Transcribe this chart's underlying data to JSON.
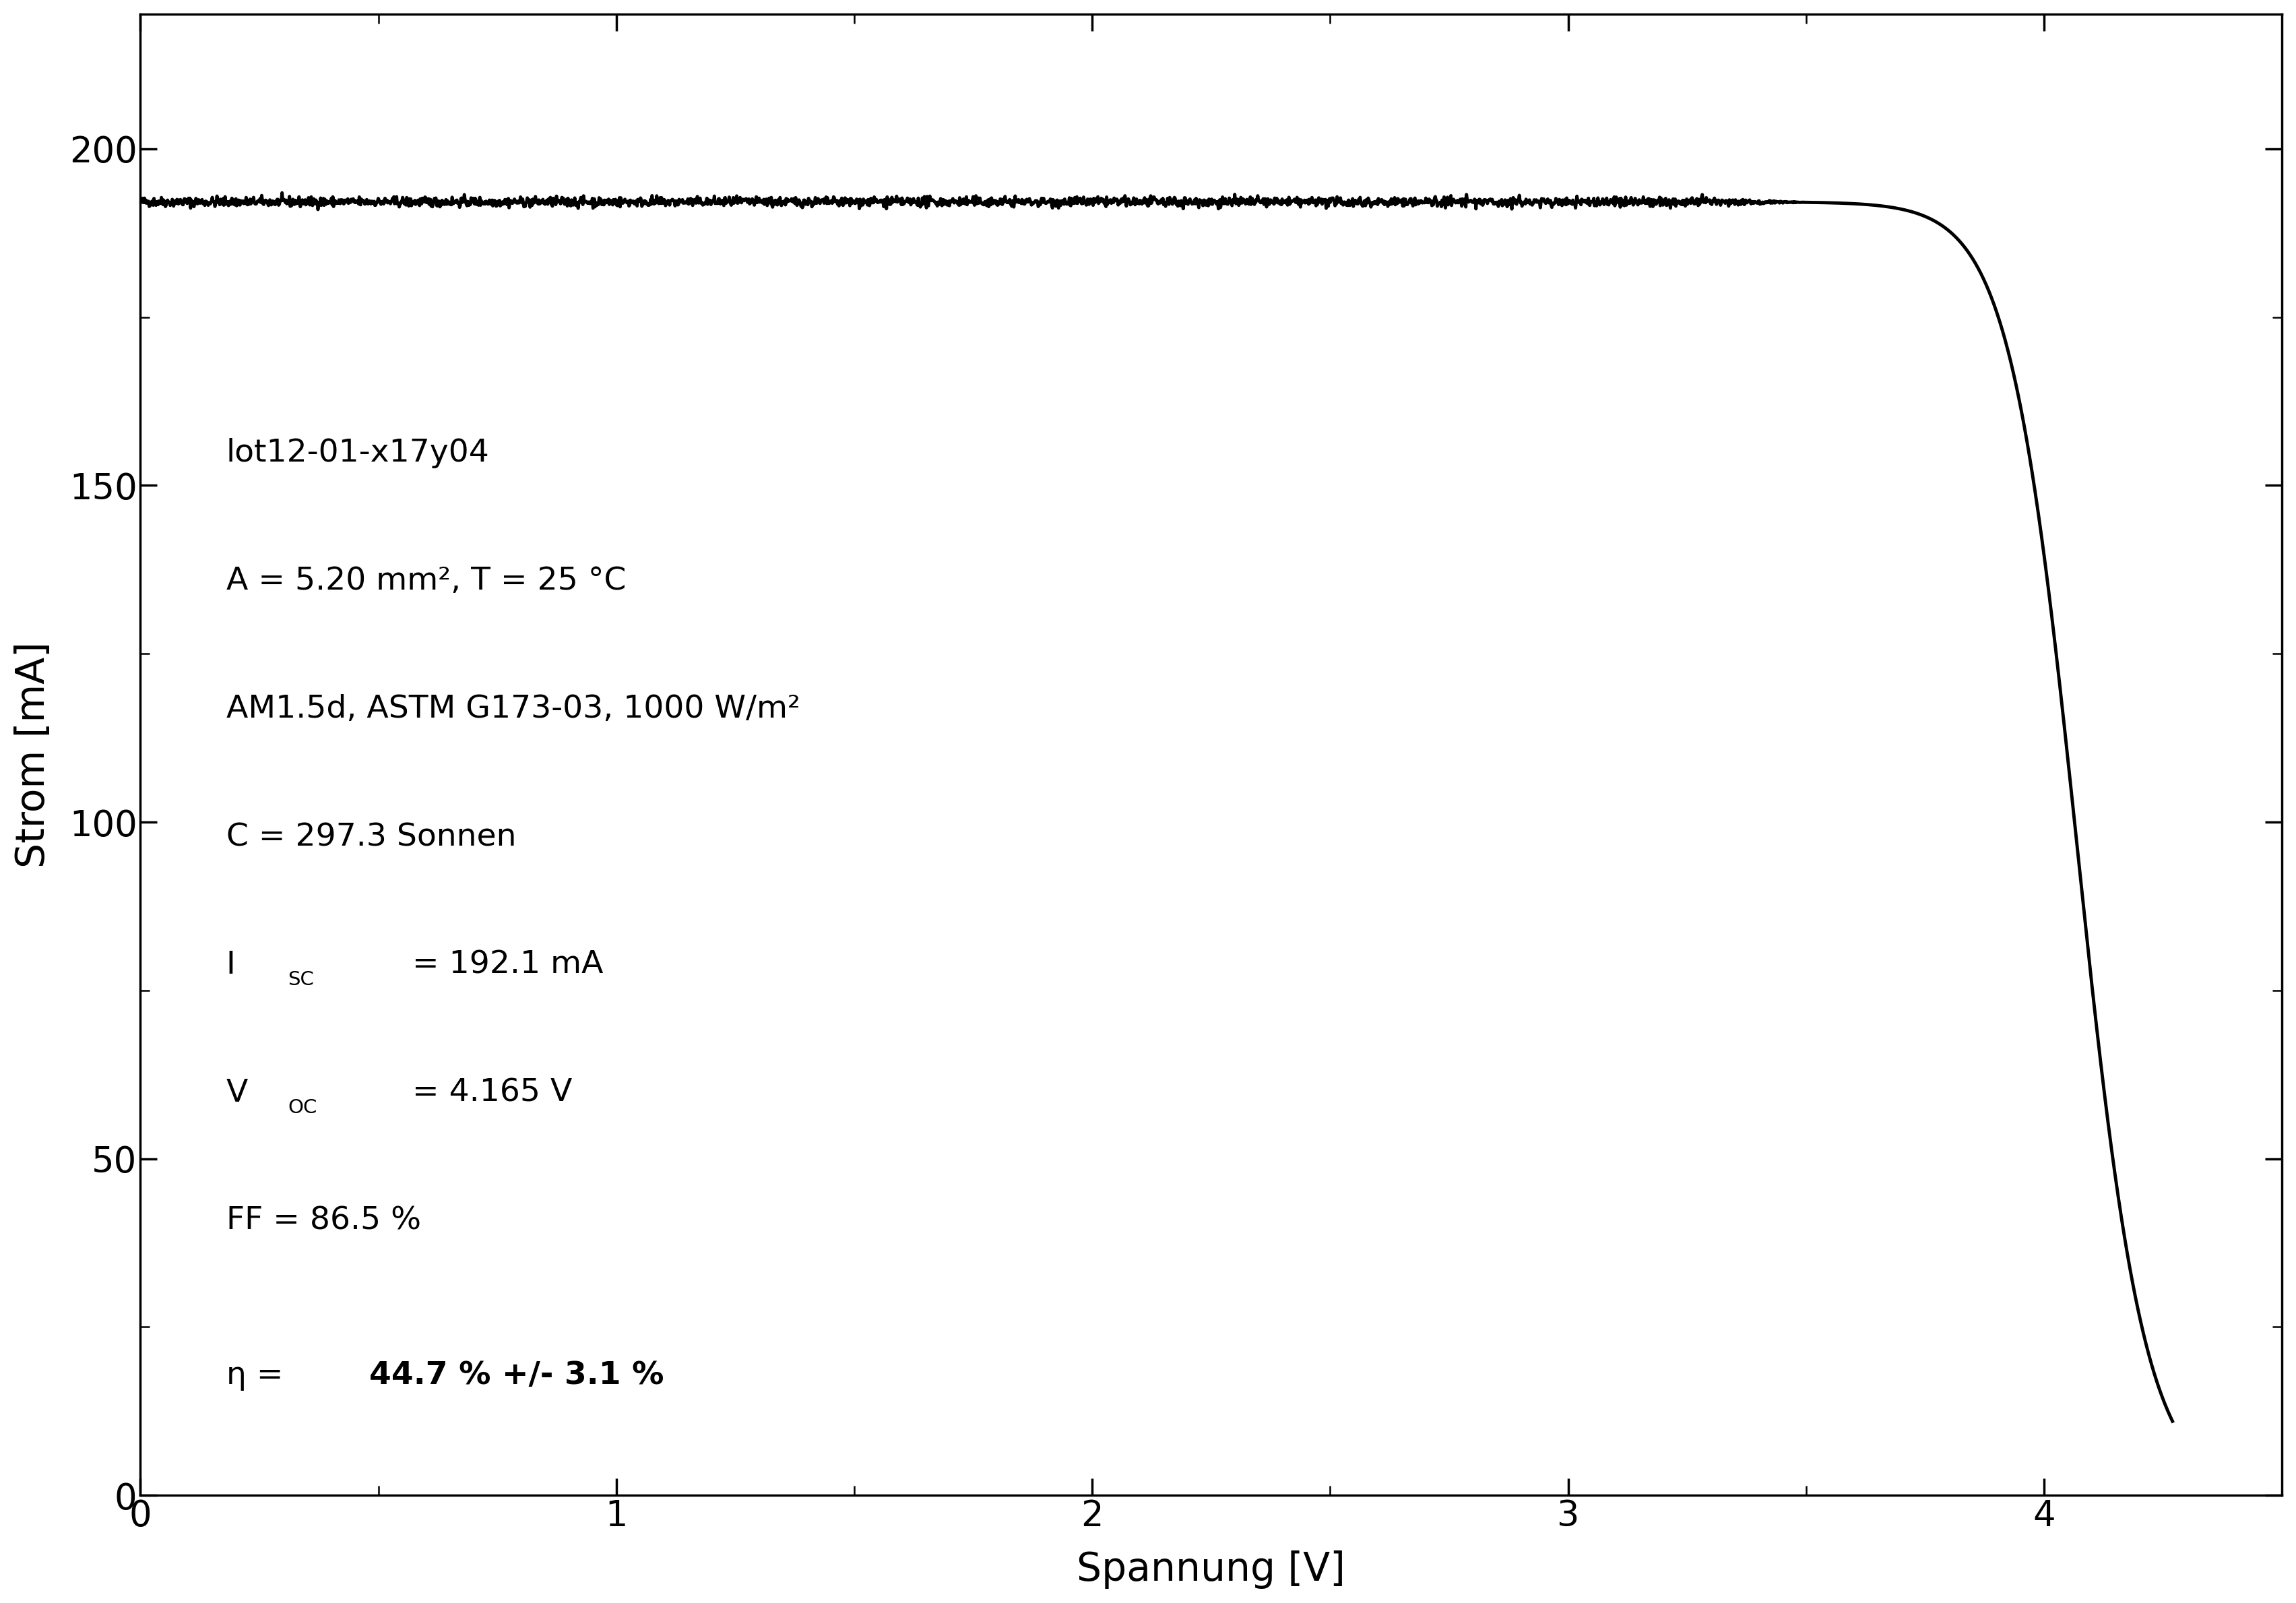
{
  "Isc": 192.1,
  "Voc": 4.165,
  "FF": 86.5,
  "eta": 44.7,
  "eta_err": 3.1,
  "xlabel": "Spannung [V]",
  "ylabel": "Strom [mA]",
  "xlim": [
    0,
    4.5
  ],
  "ylim": [
    0,
    220
  ],
  "xticks": [
    0,
    1,
    2,
    3,
    4
  ],
  "yticks": [
    0,
    50,
    100,
    150,
    200
  ],
  "line_color": "#000000",
  "line_width": 3.5,
  "font_size_annotation": 34,
  "font_size_axis_label": 42,
  "font_size_tick": 38,
  "background_color": "#ffffff",
  "noise_amplitude": 0.35,
  "noise_seed": 42,
  "V_half": 4.07,
  "steepness": 14.0,
  "V_max": 4.27
}
